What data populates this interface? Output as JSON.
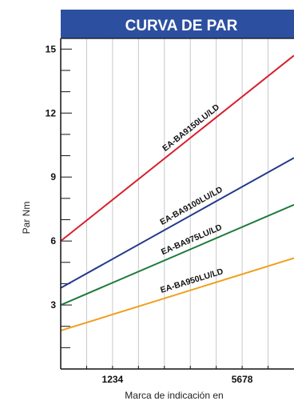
{
  "chart_data": {
    "type": "line",
    "title": "CURVA DE PAR",
    "xlabel": "Marca de indicación en",
    "ylabel": "Par Nm",
    "xlim": [
      0,
      9
    ],
    "ylim": [
      0,
      15.5
    ],
    "y_ticks": [
      3,
      6,
      9,
      12,
      15
    ],
    "x_tick_labels": [
      {
        "label": "1234",
        "x": 2
      },
      {
        "label": "5678",
        "x": 7
      }
    ],
    "grid": true,
    "colors": {
      "title_bar": "#2d4fa0",
      "grid": "#c8c8c8",
      "axis": "#111111"
    },
    "series": [
      {
        "name": "EA-BA9150LU/LD",
        "color": "#d6202e",
        "x": [
          0,
          9
        ],
        "y": [
          6.0,
          14.7
        ]
      },
      {
        "name": "EA-BA9100LU/LD",
        "color": "#243a8c",
        "x": [
          0,
          9
        ],
        "y": [
          3.8,
          9.9
        ]
      },
      {
        "name": "EA-BA975LU/LD",
        "color": "#1d7a3a",
        "x": [
          0,
          9
        ],
        "y": [
          3.0,
          7.7
        ]
      },
      {
        "name": "EA-BA950LU/LD",
        "color": "#f0a020",
        "x": [
          0,
          9
        ],
        "y": [
          1.8,
          5.2
        ]
      }
    ]
  }
}
